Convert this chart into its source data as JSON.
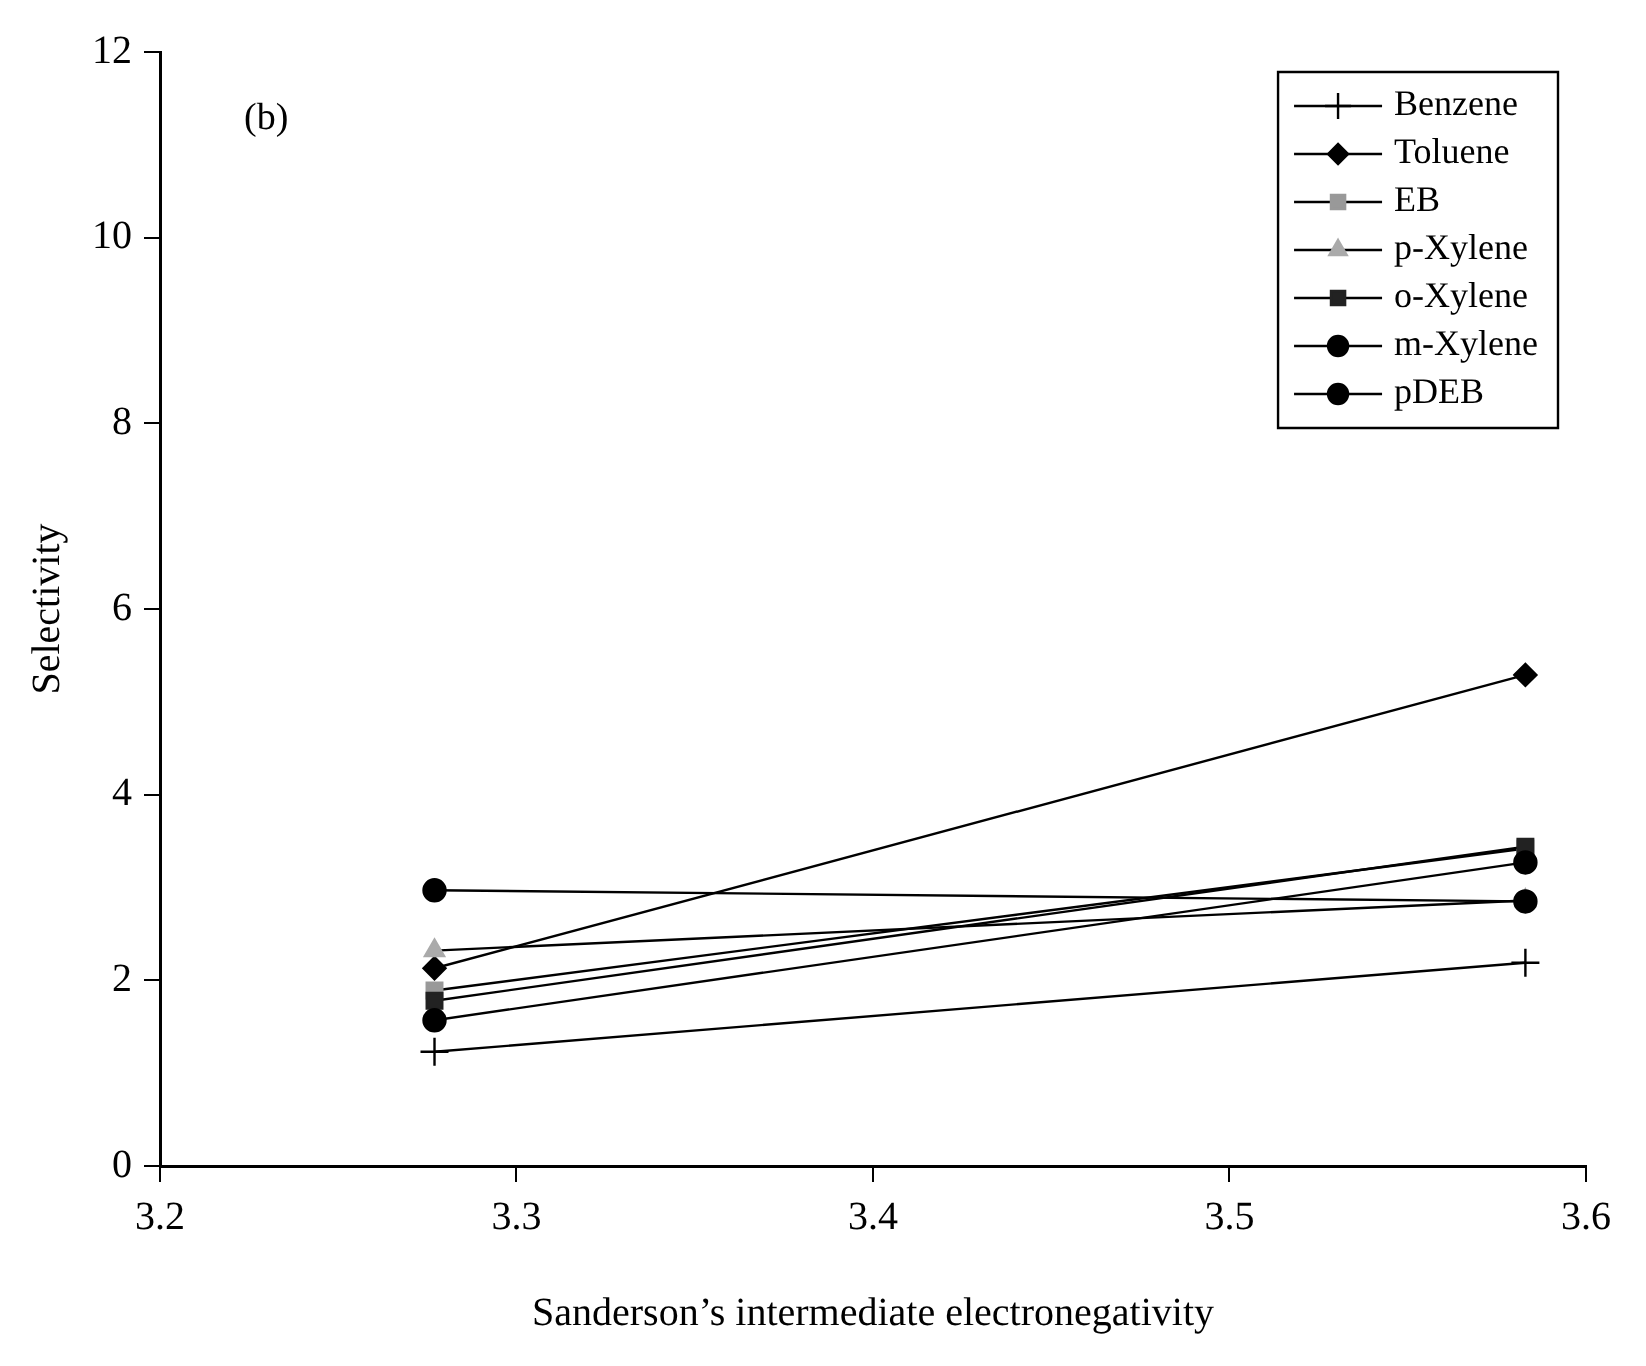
{
  "chart_data": {
    "type": "line",
    "xlabel": "Sanderson’s intermediate electronegativity",
    "ylabel": "Selectivity",
    "annotations": [
      "(b)"
    ],
    "x": [
      3.277,
      3.583
    ],
    "xlim": [
      3.2,
      3.6
    ],
    "xticks": [
      3.2,
      3.3,
      3.4,
      3.5,
      3.6
    ],
    "ylim": [
      0,
      12
    ],
    "yticks": [
      0,
      2,
      4,
      6,
      8,
      10,
      12
    ],
    "grid": false,
    "legend": "top right",
    "line_style": "solid",
    "series": [
      {
        "name": "Benzene",
        "color": "#000000",
        "marker": "cross",
        "values": [
          1.23,
          2.19
        ]
      },
      {
        "name": "Toluene",
        "color": "#000000",
        "marker": "diamond",
        "values": [
          2.13,
          5.29
        ]
      },
      {
        "name": "EB",
        "color": "#999999",
        "marker": "square",
        "values": [
          1.89,
          3.42
        ]
      },
      {
        "name": "p-Xylene",
        "color": "#aaaaaa",
        "marker": "triangle",
        "values": [
          2.32,
          2.86
        ]
      },
      {
        "name": "o-Xylene",
        "color": "#222222",
        "marker": "square",
        "values": [
          1.78,
          3.44
        ]
      },
      {
        "name": "m-Xylene",
        "color": "#000000",
        "marker": "circle",
        "values": [
          1.57,
          3.27
        ]
      },
      {
        "name": "pDEB",
        "color": "#000000",
        "marker": "circle",
        "values": [
          2.97,
          2.85
        ]
      }
    ]
  }
}
